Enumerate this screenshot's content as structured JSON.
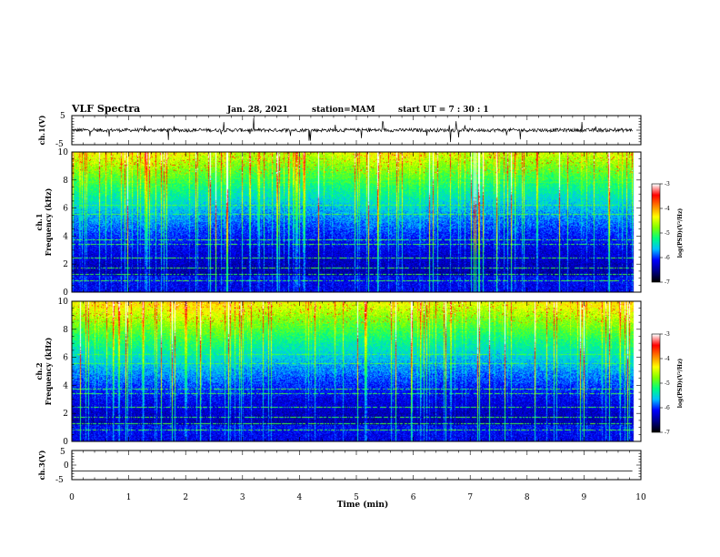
{
  "header": {
    "title": "VLF Spectra",
    "date": "Jan. 28, 2021",
    "station": "station=MAM",
    "start_ut": "start UT =   7 : 30 : 1"
  },
  "chart_data": [
    {
      "type": "line",
      "name": "ch1-waveform",
      "ylabel": "ch.1(V)",
      "ylim": [
        -5,
        5
      ],
      "yticks": [
        "5",
        "-5"
      ],
      "baseline_value": 0,
      "noise_amplitude": 1
    },
    {
      "type": "heatmap",
      "name": "ch1-spectrogram",
      "ylabel": "ch.1\nFrequency (kHz)",
      "ylabel_lines": [
        "ch.1",
        "Frequency (kHz)"
      ],
      "ylim": [
        0,
        10
      ],
      "yticks": [
        "0",
        "2",
        "4",
        "6",
        "8",
        "10"
      ],
      "colorbar": {
        "label": "log(PSD)(V²/Hz)",
        "range": [
          -7,
          -3
        ],
        "ticks": [
          "-3",
          "-4",
          "-5",
          "-6",
          "-7"
        ]
      }
    },
    {
      "type": "heatmap",
      "name": "ch2-spectrogram",
      "ylabel": "ch.2\nFrequency (kHz)",
      "ylabel_lines": [
        "ch.2",
        "Frequency (kHz)"
      ],
      "ylim": [
        0,
        10
      ],
      "yticks": [
        "0",
        "2",
        "4",
        "6",
        "8",
        "10"
      ],
      "colorbar": {
        "label": "log(PSD)(V²/Hz)",
        "range": [
          -7,
          -3
        ],
        "ticks": [
          "-3",
          "-4",
          "-5",
          "-6",
          "-7"
        ]
      }
    },
    {
      "type": "line",
      "name": "ch3-waveform",
      "ylabel": "ch.3(V)",
      "ylim": [
        -5,
        5
      ],
      "yticks": [
        "5",
        "0",
        "-5"
      ],
      "baseline_value": -2,
      "noise_amplitude": 0
    }
  ],
  "x_axis": {
    "label": "Time (min)",
    "xlim": [
      0,
      10
    ],
    "ticks": [
      "0",
      "1",
      "2",
      "3",
      "4",
      "5",
      "6",
      "7",
      "8",
      "9",
      "10"
    ],
    "data_end": 9.85
  },
  "colors": {
    "axis": "#000000",
    "waveform": "#000000",
    "colormap": [
      "#000000",
      "#00008b",
      "#0000ff",
      "#00bfff",
      "#00ff80",
      "#80ff00",
      "#ffff00",
      "#ff8000",
      "#ff0000",
      "#ffffff"
    ]
  }
}
